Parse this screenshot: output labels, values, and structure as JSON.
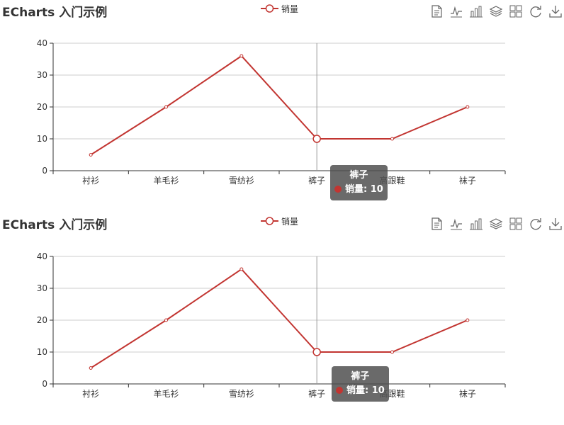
{
  "colors": {
    "series": "#c23531",
    "axis": "#333333",
    "grid": "#cccccc",
    "text": "#333333"
  },
  "toolbox_icons": [
    "data-view-icon",
    "line-chart-icon",
    "bar-chart-icon",
    "stack-icon",
    "tiled-icon",
    "restore-icon",
    "save-image-icon"
  ],
  "charts": [
    {
      "title": "ECharts 入门示例",
      "legend": "销量",
      "tooltip": {
        "category": "裤子",
        "series": "销量",
        "value": "10"
      }
    },
    {
      "title": "ECharts 入门示例",
      "legend": "销量",
      "tooltip": {
        "category": "裤子",
        "series": "销量",
        "value": "10"
      }
    }
  ],
  "chart_data": [
    {
      "type": "line",
      "categories": [
        "衬衫",
        "羊毛衫",
        "雪纺衫",
        "裤子",
        "高跟鞋",
        "袜子"
      ],
      "series": [
        {
          "name": "销量",
          "values": [
            5,
            20,
            36,
            10,
            10,
            20
          ]
        }
      ],
      "title": "ECharts 入门示例",
      "ylim": [
        0,
        40
      ],
      "yticks": [
        0,
        10,
        20,
        30,
        40
      ],
      "grid": true,
      "legend_position": "top-center",
      "highlighted_category": "裤子"
    },
    {
      "type": "line",
      "categories": [
        "衬衫",
        "羊毛衫",
        "雪纺衫",
        "裤子",
        "高跟鞋",
        "袜子"
      ],
      "series": [
        {
          "name": "销量",
          "values": [
            5,
            20,
            36,
            10,
            10,
            20
          ]
        }
      ],
      "title": "ECharts 入门示例",
      "ylim": [
        0,
        40
      ],
      "yticks": [
        0,
        10,
        20,
        30,
        40
      ],
      "grid": true,
      "legend_position": "top-center",
      "highlighted_category": "裤子"
    }
  ]
}
